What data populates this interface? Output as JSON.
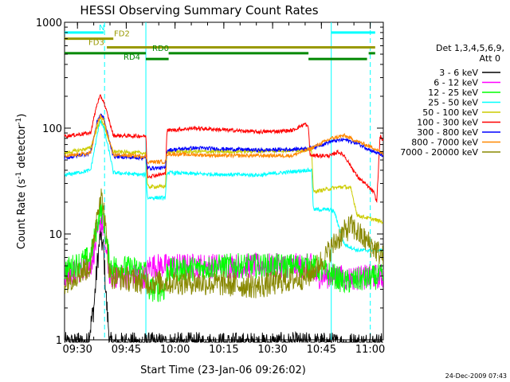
{
  "chart_data": {
    "type": "line",
    "title": "HESSI Observing Summary Count Rates",
    "xlabel": "Start Time (23-Jan-06 09:26:02)",
    "ylabel_main": "Count Rate (s",
    "ylabel_sup1": "-1",
    "ylabel_mid": " detector",
    "ylabel_sup2": "-1",
    "ylabel_end": ")",
    "timestamp": "24-Dec-2009 07:43",
    "x_range_minutes": [
      0,
      98
    ],
    "y_scale": "log",
    "ylim": [
      1,
      1000
    ],
    "x_ticks": [
      {
        "label": "09:30",
        "t": 3.97
      },
      {
        "label": "09:45",
        "t": 18.97
      },
      {
        "label": "10:00",
        "t": 33.97
      },
      {
        "label": "10:15",
        "t": 48.97
      },
      {
        "label": "10:30",
        "t": 63.97
      },
      {
        "label": "10:45",
        "t": 78.97
      },
      {
        "label": "11:00",
        "t": 93.97
      }
    ],
    "y_ticks": [
      {
        "label": "1",
        "v": 1
      },
      {
        "label": "10",
        "v": 10
      },
      {
        "label": "100",
        "v": 100
      },
      {
        "label": "1000",
        "v": 1000
      }
    ],
    "legend": {
      "position": "right",
      "title_line1": "Det 1,3,4,5,6,9,",
      "title_line2": "Att 0",
      "entries": [
        {
          "label": "3 - 6 keV",
          "color": "#000000"
        },
        {
          "label": "6 - 12 keV",
          "color": "#ff00ff"
        },
        {
          "label": "12 - 25 keV",
          "color": "#00ff00"
        },
        {
          "label": "25 - 50 keV",
          "color": "#00ffff"
        },
        {
          "label": "50 - 100 keV",
          "color": "#cccc00"
        },
        {
          "label": "100 - 300 keV",
          "color": "#ff0000"
        },
        {
          "label": "300 - 800 keV",
          "color": "#0000ff"
        },
        {
          "label": "800 - 7000 keV",
          "color": "#ff8800"
        },
        {
          "label": "7000 - 20000 keV",
          "color": "#888800"
        }
      ]
    },
    "flag_bars": [
      {
        "label": "N",
        "color": "#00ffff",
        "value": 800,
        "segments": [
          [
            0,
            12
          ],
          [
            82,
            95.5
          ]
        ]
      },
      {
        "label": "FD2",
        "color": "#999900",
        "value": 700,
        "segments": [
          [
            0,
            15
          ]
        ]
      },
      {
        "label": "FD3",
        "color": "#999900",
        "value": 580,
        "segments": [
          [
            13,
            95.5
          ]
        ]
      },
      {
        "label": "RD0",
        "color": "#008800",
        "value": 510,
        "segments": [
          [
            0,
            25
          ],
          [
            32,
            75
          ],
          [
            93.5,
            95.5
          ]
        ]
      },
      {
        "label": "RD4",
        "color": "#008800",
        "value": 450,
        "segments": [
          [
            25,
            32
          ],
          [
            75,
            93
          ]
        ]
      }
    ],
    "vertical_markers": [
      {
        "t": 12.3,
        "color": "#00ffff",
        "style": "dashed"
      },
      {
        "t": 25.0,
        "color": "#00ffff",
        "style": "solid"
      },
      {
        "t": 82.0,
        "color": "#00ffff",
        "style": "solid"
      },
      {
        "t": 94.0,
        "color": "#00ffff",
        "style": "dashed"
      }
    ],
    "series": [
      {
        "name": "3 - 6 keV",
        "color": "#000000",
        "points": [
          [
            0,
            0.9
          ],
          [
            7,
            0.9
          ],
          [
            9,
            2
          ],
          [
            10,
            5
          ],
          [
            11,
            10
          ],
          [
            12,
            7
          ],
          [
            13,
            2
          ],
          [
            14,
            0.9
          ],
          [
            78,
            0.9
          ],
          [
            90,
            0.9
          ]
        ]
      },
      {
        "name": "6 - 12 keV",
        "color": "#ff00ff",
        "points": [
          [
            0,
            4
          ],
          [
            8,
            5
          ],
          [
            10,
            9
          ],
          [
            11,
            14
          ],
          [
            12,
            11
          ],
          [
            13,
            6
          ],
          [
            14,
            4
          ],
          [
            25,
            4
          ],
          [
            26,
            5
          ],
          [
            40,
            5
          ],
          [
            60,
            5
          ],
          [
            76,
            5
          ],
          [
            77,
            4
          ],
          [
            84,
            4
          ],
          [
            86,
            3.8
          ],
          [
            98,
            4
          ]
        ]
      },
      {
        "name": "12 - 25 keV",
        "color": "#00ff00",
        "points": [
          [
            0,
            4.5
          ],
          [
            8,
            6
          ],
          [
            10,
            12
          ],
          [
            11,
            18
          ],
          [
            12,
            14
          ],
          [
            13,
            8
          ],
          [
            14,
            5
          ],
          [
            25,
            4.5
          ],
          [
            25.5,
            3
          ],
          [
            31,
            3
          ],
          [
            31.5,
            4.5
          ],
          [
            50,
            5
          ],
          [
            76,
            5
          ],
          [
            83,
            4
          ],
          [
            86,
            3.5
          ],
          [
            98,
            4
          ]
        ]
      },
      {
        "name": "25 - 50 keV",
        "color": "#00ffff",
        "points": [
          [
            0,
            36
          ],
          [
            8,
            40
          ],
          [
            10,
            85
          ],
          [
            11,
            120
          ],
          [
            12,
            100
          ],
          [
            14,
            55
          ],
          [
            15,
            38
          ],
          [
            25,
            36
          ],
          [
            25.5,
            22
          ],
          [
            31,
            22
          ],
          [
            31.5,
            38
          ],
          [
            40,
            37
          ],
          [
            60,
            36
          ],
          [
            74,
            40
          ],
          [
            76,
            40
          ],
          [
            76.5,
            17
          ],
          [
            82,
            17
          ],
          [
            83,
            16
          ],
          [
            86,
            8
          ],
          [
            90,
            7
          ],
          [
            98,
            7
          ]
        ]
      },
      {
        "name": "50 - 100 keV",
        "color": "#cccc00",
        "points": [
          [
            0,
            58
          ],
          [
            8,
            65
          ],
          [
            10,
            100
          ],
          [
            11,
            125
          ],
          [
            12,
            110
          ],
          [
            14,
            70
          ],
          [
            15,
            60
          ],
          [
            25,
            58
          ],
          [
            25.5,
            28
          ],
          [
            31,
            28
          ],
          [
            31.5,
            60
          ],
          [
            50,
            60
          ],
          [
            74,
            62
          ],
          [
            76,
            62
          ],
          [
            76.5,
            25
          ],
          [
            82,
            27
          ],
          [
            86,
            28
          ],
          [
            88,
            27
          ],
          [
            90,
            15
          ],
          [
            98,
            13
          ]
        ]
      },
      {
        "name": "100 - 300 keV",
        "color": "#ff0000",
        "points": [
          [
            0,
            84
          ],
          [
            8,
            90
          ],
          [
            10,
            170
          ],
          [
            11,
            200
          ],
          [
            12,
            180
          ],
          [
            14,
            110
          ],
          [
            15,
            85
          ],
          [
            25,
            84
          ],
          [
            25.5,
            35
          ],
          [
            31,
            37
          ],
          [
            31.5,
            95
          ],
          [
            40,
            100
          ],
          [
            60,
            92
          ],
          [
            70,
            95
          ],
          [
            74,
            110
          ],
          [
            75,
            100
          ],
          [
            75.5,
            55
          ],
          [
            82,
            55
          ],
          [
            84,
            60
          ],
          [
            86,
            55
          ],
          [
            90,
            35
          ],
          [
            95,
            25
          ],
          [
            96,
            20
          ],
          [
            97,
            85
          ],
          [
            98,
            75
          ]
        ]
      },
      {
        "name": "300 - 800 keV",
        "color": "#0000ff",
        "points": [
          [
            0,
            52
          ],
          [
            8,
            58
          ],
          [
            10,
            115
          ],
          [
            11,
            135
          ],
          [
            12,
            125
          ],
          [
            14,
            72
          ],
          [
            15,
            54
          ],
          [
            25,
            52
          ],
          [
            25.5,
            42
          ],
          [
            31,
            42
          ],
          [
            31.5,
            62
          ],
          [
            40,
            65
          ],
          [
            60,
            62
          ],
          [
            70,
            63
          ],
          [
            76,
            65
          ],
          [
            82,
            75
          ],
          [
            86,
            78
          ],
          [
            90,
            72
          ],
          [
            95,
            60
          ],
          [
            98,
            55
          ]
        ]
      },
      {
        "name": "800 - 7000 keV",
        "color": "#ff8800",
        "points": [
          [
            0,
            54
          ],
          [
            8,
            58
          ],
          [
            10,
            110
          ],
          [
            11,
            130
          ],
          [
            12,
            120
          ],
          [
            14,
            70
          ],
          [
            15,
            56
          ],
          [
            25,
            54
          ],
          [
            25.5,
            48
          ],
          [
            31,
            48
          ],
          [
            31.5,
            57
          ],
          [
            50,
            55
          ],
          [
            70,
            55
          ],
          [
            76,
            65
          ],
          [
            82,
            80
          ],
          [
            86,
            85
          ],
          [
            90,
            75
          ],
          [
            95,
            65
          ],
          [
            98,
            57
          ]
        ]
      },
      {
        "name": "7000 - 20000 keV",
        "color": "#888800",
        "points": [
          [
            0,
            3.5
          ],
          [
            8,
            5
          ],
          [
            10,
            16
          ],
          [
            11,
            24
          ],
          [
            12,
            18
          ],
          [
            13,
            8
          ],
          [
            14,
            4
          ],
          [
            25,
            3.5
          ],
          [
            40,
            3.5
          ],
          [
            60,
            3.2
          ],
          [
            75,
            4
          ],
          [
            80,
            6
          ],
          [
            84,
            9
          ],
          [
            88,
            12
          ],
          [
            92,
            9
          ],
          [
            95,
            7.5
          ],
          [
            98,
            6
          ]
        ]
      }
    ]
  }
}
